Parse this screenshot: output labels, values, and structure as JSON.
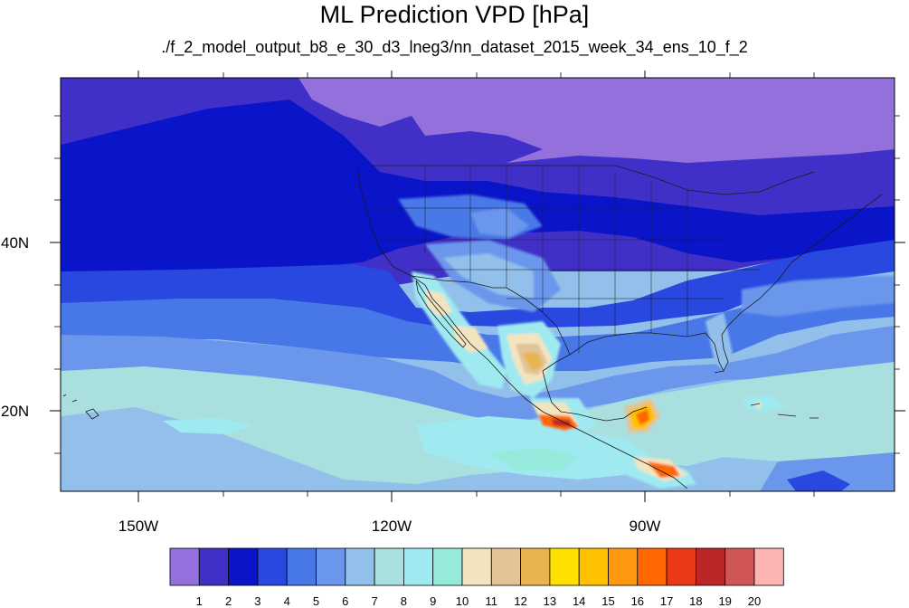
{
  "title": "ML Prediction VPD [hPa]",
  "subtitle": "./f_2_model_output_b8_e_30_d3_lneg3/nn_dataset_2015_week_34_ens_10_f_2",
  "lat_labels": [
    "40N",
    "20N"
  ],
  "lon_labels": [
    "150W",
    "120W",
    "90W"
  ],
  "colorbar": {
    "colors": [
      "#9370db",
      "#4030c8",
      "#0a14c8",
      "#2848e0",
      "#4878e8",
      "#6a96ec",
      "#92c0ea",
      "#aadfe0",
      "#9eeaf0",
      "#96ebdc",
      "#f3e4c0",
      "#e2c496",
      "#e8b450",
      "#ffe000",
      "#ffc000",
      "#ff9810",
      "#ff6800",
      "#ea3818",
      "#bb2626",
      "#d05656",
      "#ffb4b4"
    ],
    "labels": [
      "1",
      "2",
      "3",
      "4",
      "5",
      "6",
      "7",
      "8",
      "9",
      "10",
      "11",
      "12",
      "13",
      "14",
      "15",
      "16",
      "17",
      "18",
      "19",
      "20"
    ]
  },
  "map": {
    "projection": "cylindrical-equidistant",
    "lon_range": [
      -160,
      -61
    ],
    "lat_range": [
      10,
      59
    ]
  }
}
